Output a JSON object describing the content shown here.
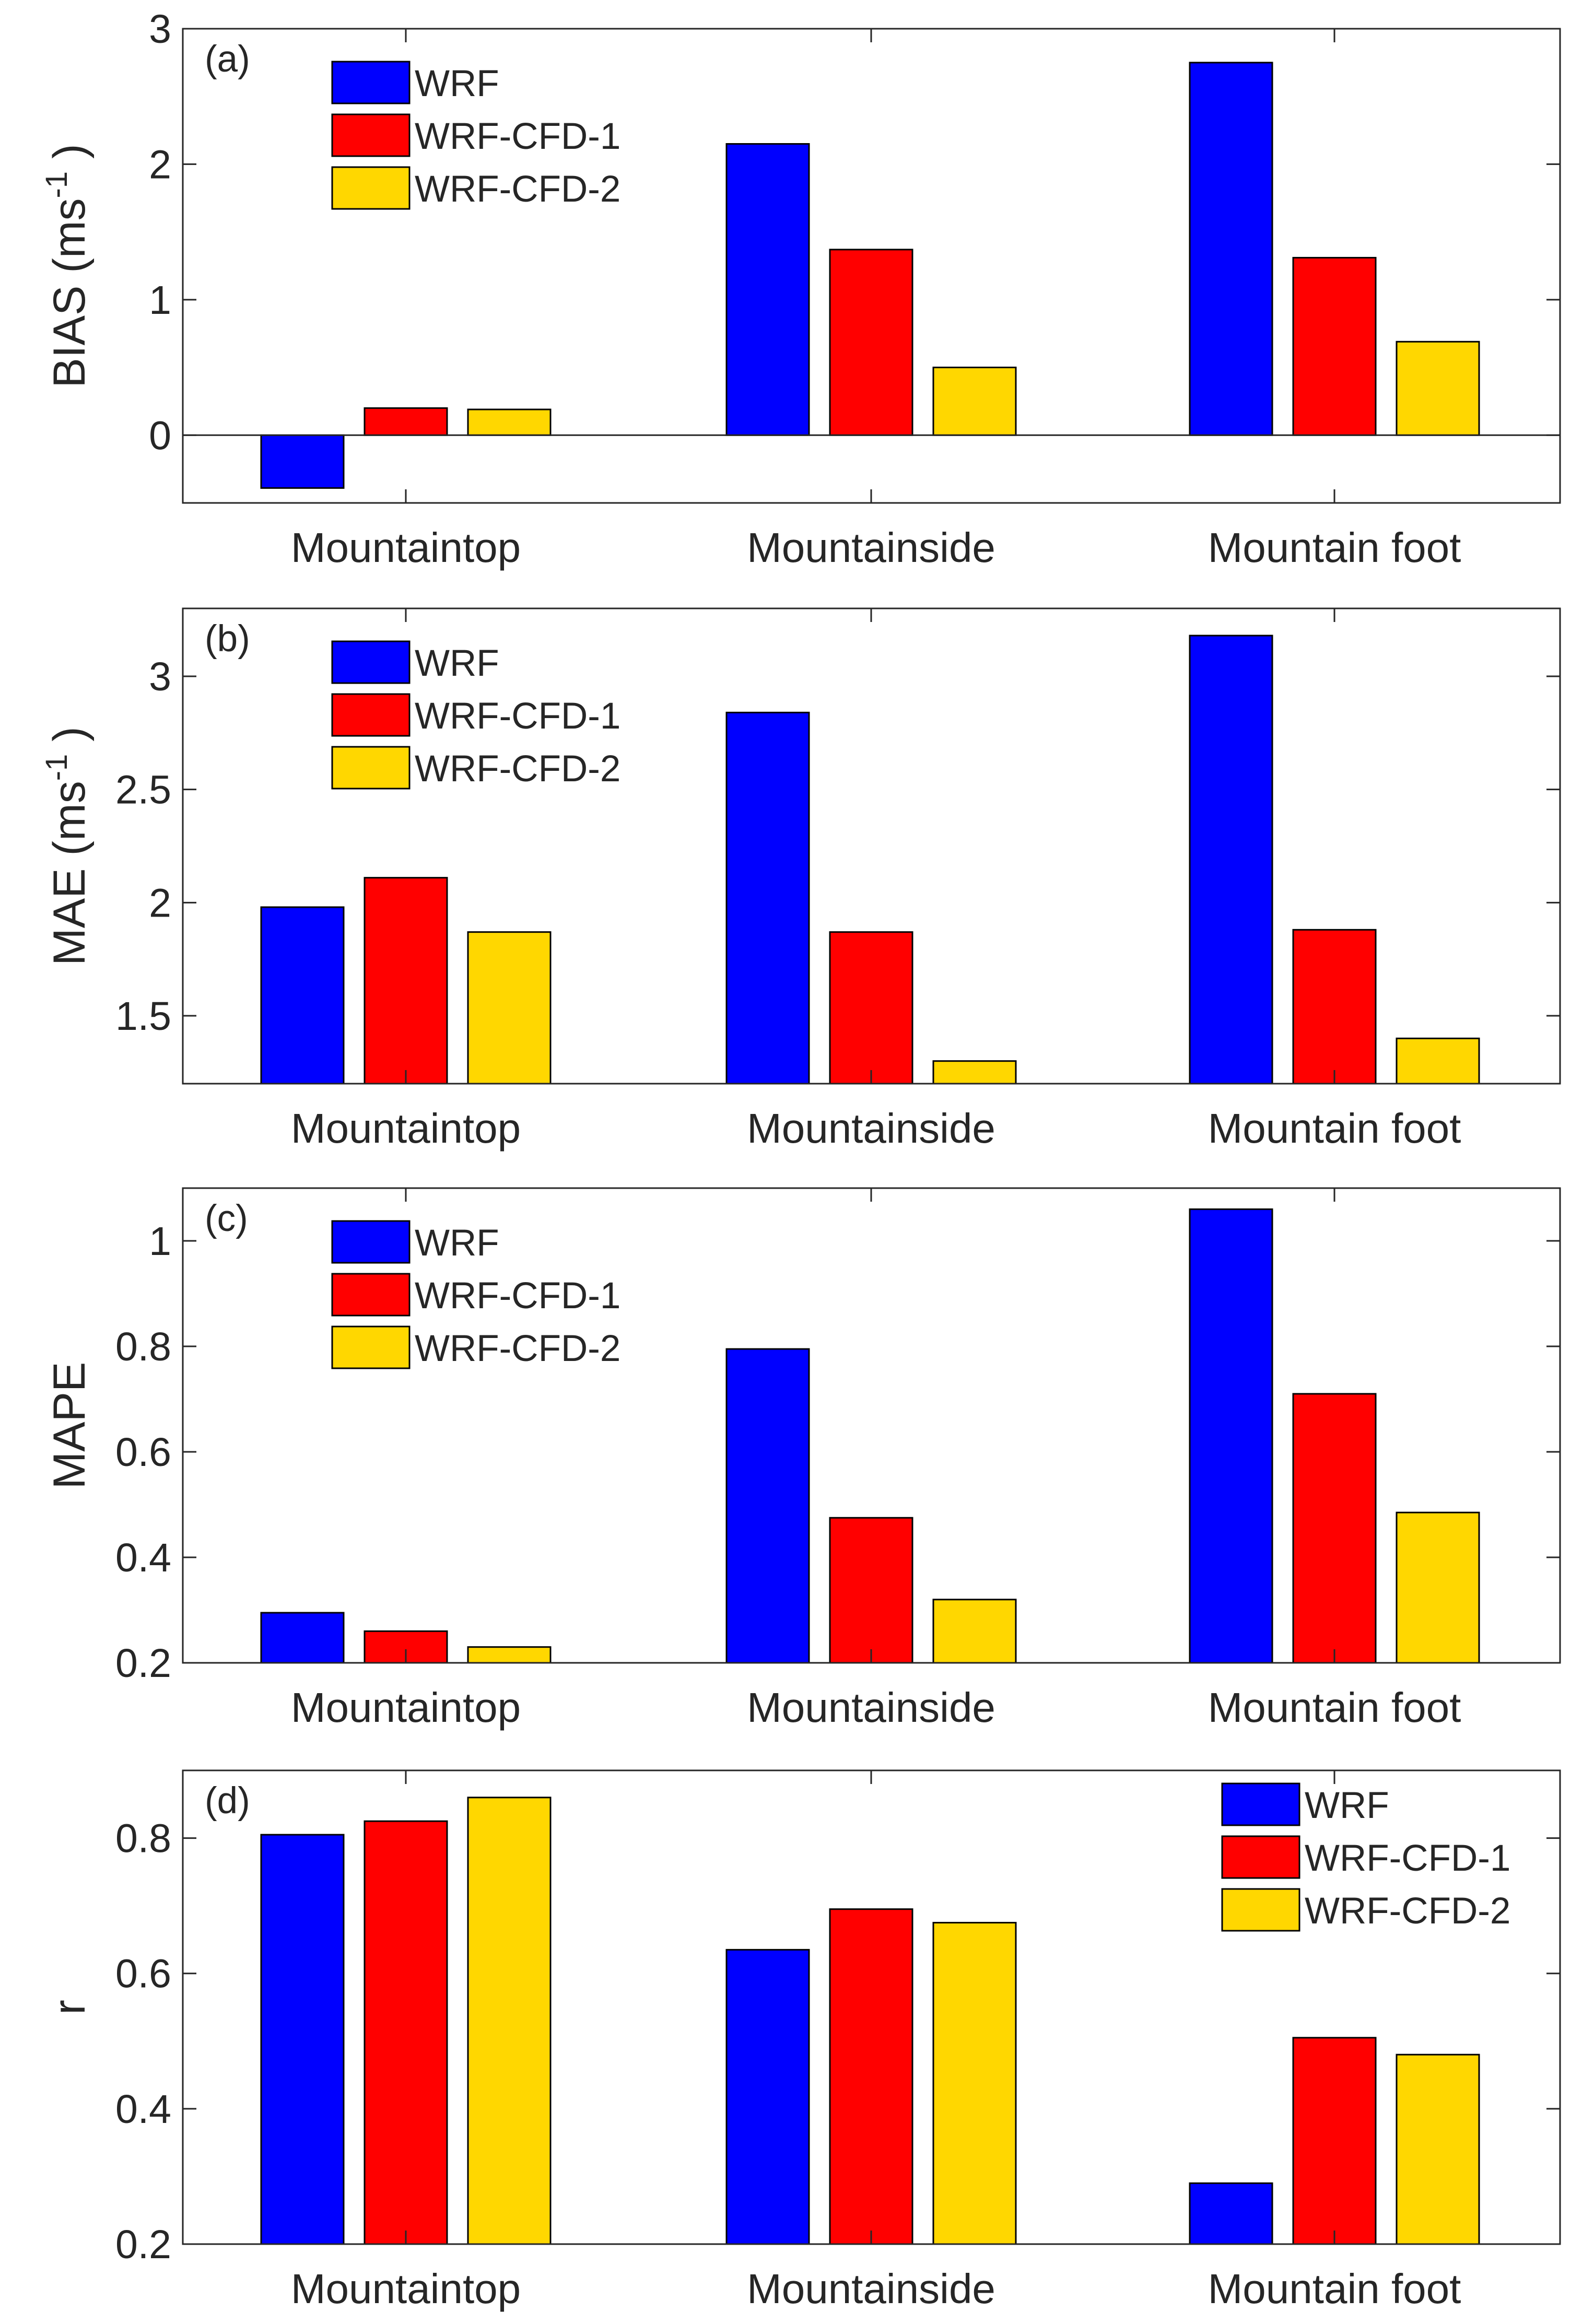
{
  "colors": {
    "WRF": "#0000ff",
    "WRF-CFD-1": "#ff0000",
    "WRF-CFD-2": "#ffd700",
    "axis": "#262626",
    "background": "#ffffff"
  },
  "chart_data": [
    {
      "type": "bar",
      "panel_label": "(a)",
      "ylabel": "BIAS (ms",
      "ylabel_sup": "-1",
      "ylabel_close": ")",
      "categories": [
        "Mountaintop",
        "Mountainside",
        "Mountain foot"
      ],
      "series": [
        {
          "name": "WRF",
          "values": [
            -0.39,
            2.15,
            2.75
          ]
        },
        {
          "name": "WRF-CFD-1",
          "values": [
            0.2,
            1.37,
            1.31
          ]
        },
        {
          "name": "WRF-CFD-2",
          "values": [
            0.19,
            0.5,
            0.69
          ]
        }
      ],
      "ylim": [
        -0.5,
        3
      ],
      "yticks": [
        0,
        1,
        2,
        3
      ],
      "ytick_labels": [
        "0",
        "1",
        "2",
        "3"
      ],
      "zero_line": true,
      "legend_position": "top-left",
      "legend": [
        "WRF",
        "WRF-CFD-1",
        "WRF-CFD-2"
      ]
    },
    {
      "type": "bar",
      "panel_label": "(b)",
      "ylabel": "MAE (ms",
      "ylabel_sup": "-1",
      "ylabel_close": ")",
      "categories": [
        "Mountaintop",
        "Mountainside",
        "Mountain foot"
      ],
      "series": [
        {
          "name": "WRF",
          "values": [
            1.98,
            2.84,
            3.18
          ]
        },
        {
          "name": "WRF-CFD-1",
          "values": [
            2.11,
            1.87,
            1.88
          ]
        },
        {
          "name": "WRF-CFD-2",
          "values": [
            1.87,
            1.3,
            1.4
          ]
        }
      ],
      "ylim": [
        1.2,
        3.3
      ],
      "yticks": [
        1.5,
        2,
        2.5,
        3
      ],
      "ytick_labels": [
        "1.5",
        "2",
        "2.5",
        "3"
      ],
      "zero_line": false,
      "legend_position": "top-left",
      "legend": [
        "WRF",
        "WRF-CFD-1",
        "WRF-CFD-2"
      ]
    },
    {
      "type": "bar",
      "panel_label": "(c)",
      "ylabel": "MAPE",
      "ylabel_sup": "",
      "ylabel_close": "",
      "categories": [
        "Mountaintop",
        "Mountainside",
        "Mountain foot"
      ],
      "series": [
        {
          "name": "WRF",
          "values": [
            0.295,
            0.795,
            1.06
          ]
        },
        {
          "name": "WRF-CFD-1",
          "values": [
            0.26,
            0.475,
            0.71
          ]
        },
        {
          "name": "WRF-CFD-2",
          "values": [
            0.23,
            0.32,
            0.485
          ]
        }
      ],
      "ylim": [
        0.2,
        1.1
      ],
      "yticks": [
        0.2,
        0.4,
        0.6,
        0.8,
        1
      ],
      "ytick_labels": [
        "0.2",
        "0.4",
        "0.6",
        "0.8",
        "1"
      ],
      "zero_line": false,
      "legend_position": "top-left",
      "legend": [
        "WRF",
        "WRF-CFD-1",
        "WRF-CFD-2"
      ]
    },
    {
      "type": "bar",
      "panel_label": "(d)",
      "ylabel": "r",
      "ylabel_sup": "",
      "ylabel_close": "",
      "categories": [
        "Mountaintop",
        "Mountainside",
        "Mountain foot"
      ],
      "series": [
        {
          "name": "WRF",
          "values": [
            0.805,
            0.635,
            0.29
          ]
        },
        {
          "name": "WRF-CFD-1",
          "values": [
            0.825,
            0.695,
            0.505
          ]
        },
        {
          "name": "WRF-CFD-2",
          "values": [
            0.86,
            0.675,
            0.48
          ]
        }
      ],
      "ylim": [
        0.2,
        0.9
      ],
      "yticks": [
        0.2,
        0.4,
        0.6,
        0.8
      ],
      "ytick_labels": [
        "0.2",
        "0.4",
        "0.6",
        "0.8"
      ],
      "zero_line": false,
      "legend_position": "top-right",
      "legend": [
        "WRF",
        "WRF-CFD-1",
        "WRF-CFD-2"
      ]
    }
  ]
}
